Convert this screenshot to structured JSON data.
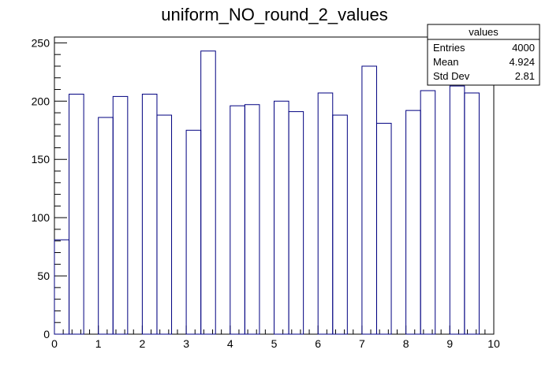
{
  "chart_data": {
    "type": "bar",
    "title": "uniform_NO_round_2_values",
    "xlabel": "",
    "ylabel": "",
    "xlim": [
      0,
      10
    ],
    "ylim": [
      0,
      255
    ],
    "bin_width": 0.3333,
    "grid": false,
    "legend": "none",
    "line_color": "#000080",
    "x_ticks": [
      "0",
      "1",
      "2",
      "3",
      "4",
      "5",
      "6",
      "7",
      "8",
      "9",
      "10"
    ],
    "y_ticks": [
      "0",
      "50",
      "100",
      "150",
      "200",
      "250"
    ],
    "bins": [
      {
        "x_low": 0.0,
        "x_high": 0.3333,
        "value": 81
      },
      {
        "x_low": 0.3333,
        "x_high": 0.6667,
        "value": 206
      },
      {
        "x_low": 0.6667,
        "x_high": 1.0,
        "value": 0
      },
      {
        "x_low": 1.0,
        "x_high": 1.3333,
        "value": 186
      },
      {
        "x_low": 1.3333,
        "x_high": 1.6667,
        "value": 204
      },
      {
        "x_low": 1.6667,
        "x_high": 2.0,
        "value": 0
      },
      {
        "x_low": 2.0,
        "x_high": 2.3333,
        "value": 206
      },
      {
        "x_low": 2.3333,
        "x_high": 2.6667,
        "value": 188
      },
      {
        "x_low": 2.6667,
        "x_high": 3.0,
        "value": 0
      },
      {
        "x_low": 3.0,
        "x_high": 3.3333,
        "value": 175
      },
      {
        "x_low": 3.3333,
        "x_high": 3.6667,
        "value": 243
      },
      {
        "x_low": 3.6667,
        "x_high": 4.0,
        "value": 0
      },
      {
        "x_low": 4.0,
        "x_high": 4.3333,
        "value": 196
      },
      {
        "x_low": 4.3333,
        "x_high": 4.6667,
        "value": 197
      },
      {
        "x_low": 4.6667,
        "x_high": 5.0,
        "value": 0
      },
      {
        "x_low": 5.0,
        "x_high": 5.3333,
        "value": 200
      },
      {
        "x_low": 5.3333,
        "x_high": 5.6667,
        "value": 191
      },
      {
        "x_low": 5.6667,
        "x_high": 6.0,
        "value": 0
      },
      {
        "x_low": 6.0,
        "x_high": 6.3333,
        "value": 207
      },
      {
        "x_low": 6.3333,
        "x_high": 6.6667,
        "value": 188
      },
      {
        "x_low": 6.6667,
        "x_high": 7.0,
        "value": 0
      },
      {
        "x_low": 7.0,
        "x_high": 7.3333,
        "value": 230
      },
      {
        "x_low": 7.3333,
        "x_high": 7.6667,
        "value": 181
      },
      {
        "x_low": 7.6667,
        "x_high": 8.0,
        "value": 0
      },
      {
        "x_low": 8.0,
        "x_high": 8.3333,
        "value": 192
      },
      {
        "x_low": 8.3333,
        "x_high": 8.6667,
        "value": 209
      },
      {
        "x_low": 8.6667,
        "x_high": 9.0,
        "value": 0
      },
      {
        "x_low": 9.0,
        "x_high": 9.3333,
        "value": 213
      },
      {
        "x_low": 9.3333,
        "x_high": 9.6667,
        "value": 207
      },
      {
        "x_low": 9.6667,
        "x_high": 10.0,
        "value": 0
      }
    ]
  },
  "stats_box": {
    "title": "values",
    "entries_label": "Entries",
    "entries_value": "4000",
    "mean_label": "Mean",
    "mean_value": "4.924",
    "stddev_label": "Std Dev",
    "stddev_value": "2.81"
  }
}
